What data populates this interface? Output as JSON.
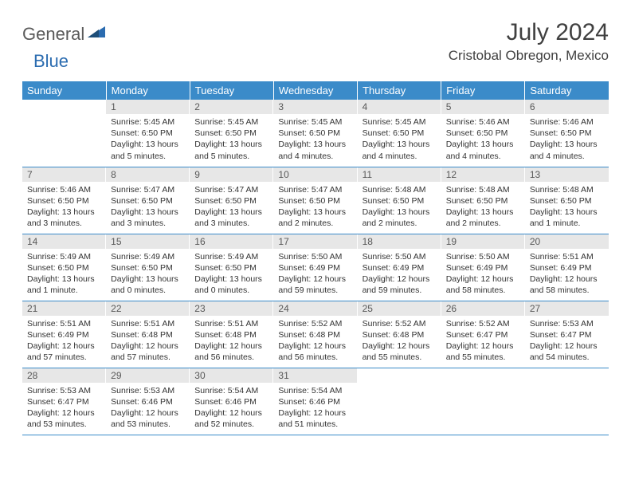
{
  "brand": {
    "part1": "General",
    "part2": "Blue"
  },
  "title": "July 2024",
  "location": "Cristobal Obregon, Mexico",
  "colors": {
    "header_bg": "#3b8bc9",
    "header_text": "#ffffff",
    "daynum_bg": "#e7e7e7",
    "daynum_text": "#595959",
    "border": "#3b8bc9",
    "brand_gray": "#5a5a5a",
    "brand_blue": "#2b6cb0"
  },
  "typography": {
    "title_fontsize": 30,
    "location_fontsize": 17,
    "dayhead_fontsize": 13,
    "cell_fontsize": 10.5
  },
  "day_headers": [
    "Sunday",
    "Monday",
    "Tuesday",
    "Wednesday",
    "Thursday",
    "Friday",
    "Saturday"
  ],
  "weeks": [
    [
      {
        "n": "",
        "sr": "",
        "ss": "",
        "dl": ""
      },
      {
        "n": "1",
        "sr": "Sunrise: 5:45 AM",
        "ss": "Sunset: 6:50 PM",
        "dl": "Daylight: 13 hours and 5 minutes."
      },
      {
        "n": "2",
        "sr": "Sunrise: 5:45 AM",
        "ss": "Sunset: 6:50 PM",
        "dl": "Daylight: 13 hours and 5 minutes."
      },
      {
        "n": "3",
        "sr": "Sunrise: 5:45 AM",
        "ss": "Sunset: 6:50 PM",
        "dl": "Daylight: 13 hours and 4 minutes."
      },
      {
        "n": "4",
        "sr": "Sunrise: 5:45 AM",
        "ss": "Sunset: 6:50 PM",
        "dl": "Daylight: 13 hours and 4 minutes."
      },
      {
        "n": "5",
        "sr": "Sunrise: 5:46 AM",
        "ss": "Sunset: 6:50 PM",
        "dl": "Daylight: 13 hours and 4 minutes."
      },
      {
        "n": "6",
        "sr": "Sunrise: 5:46 AM",
        "ss": "Sunset: 6:50 PM",
        "dl": "Daylight: 13 hours and 4 minutes."
      }
    ],
    [
      {
        "n": "7",
        "sr": "Sunrise: 5:46 AM",
        "ss": "Sunset: 6:50 PM",
        "dl": "Daylight: 13 hours and 3 minutes."
      },
      {
        "n": "8",
        "sr": "Sunrise: 5:47 AM",
        "ss": "Sunset: 6:50 PM",
        "dl": "Daylight: 13 hours and 3 minutes."
      },
      {
        "n": "9",
        "sr": "Sunrise: 5:47 AM",
        "ss": "Sunset: 6:50 PM",
        "dl": "Daylight: 13 hours and 3 minutes."
      },
      {
        "n": "10",
        "sr": "Sunrise: 5:47 AM",
        "ss": "Sunset: 6:50 PM",
        "dl": "Daylight: 13 hours and 2 minutes."
      },
      {
        "n": "11",
        "sr": "Sunrise: 5:48 AM",
        "ss": "Sunset: 6:50 PM",
        "dl": "Daylight: 13 hours and 2 minutes."
      },
      {
        "n": "12",
        "sr": "Sunrise: 5:48 AM",
        "ss": "Sunset: 6:50 PM",
        "dl": "Daylight: 13 hours and 2 minutes."
      },
      {
        "n": "13",
        "sr": "Sunrise: 5:48 AM",
        "ss": "Sunset: 6:50 PM",
        "dl": "Daylight: 13 hours and 1 minute."
      }
    ],
    [
      {
        "n": "14",
        "sr": "Sunrise: 5:49 AM",
        "ss": "Sunset: 6:50 PM",
        "dl": "Daylight: 13 hours and 1 minute."
      },
      {
        "n": "15",
        "sr": "Sunrise: 5:49 AM",
        "ss": "Sunset: 6:50 PM",
        "dl": "Daylight: 13 hours and 0 minutes."
      },
      {
        "n": "16",
        "sr": "Sunrise: 5:49 AM",
        "ss": "Sunset: 6:50 PM",
        "dl": "Daylight: 13 hours and 0 minutes."
      },
      {
        "n": "17",
        "sr": "Sunrise: 5:50 AM",
        "ss": "Sunset: 6:49 PM",
        "dl": "Daylight: 12 hours and 59 minutes."
      },
      {
        "n": "18",
        "sr": "Sunrise: 5:50 AM",
        "ss": "Sunset: 6:49 PM",
        "dl": "Daylight: 12 hours and 59 minutes."
      },
      {
        "n": "19",
        "sr": "Sunrise: 5:50 AM",
        "ss": "Sunset: 6:49 PM",
        "dl": "Daylight: 12 hours and 58 minutes."
      },
      {
        "n": "20",
        "sr": "Sunrise: 5:51 AM",
        "ss": "Sunset: 6:49 PM",
        "dl": "Daylight: 12 hours and 58 minutes."
      }
    ],
    [
      {
        "n": "21",
        "sr": "Sunrise: 5:51 AM",
        "ss": "Sunset: 6:49 PM",
        "dl": "Daylight: 12 hours and 57 minutes."
      },
      {
        "n": "22",
        "sr": "Sunrise: 5:51 AM",
        "ss": "Sunset: 6:48 PM",
        "dl": "Daylight: 12 hours and 57 minutes."
      },
      {
        "n": "23",
        "sr": "Sunrise: 5:51 AM",
        "ss": "Sunset: 6:48 PM",
        "dl": "Daylight: 12 hours and 56 minutes."
      },
      {
        "n": "24",
        "sr": "Sunrise: 5:52 AM",
        "ss": "Sunset: 6:48 PM",
        "dl": "Daylight: 12 hours and 56 minutes."
      },
      {
        "n": "25",
        "sr": "Sunrise: 5:52 AM",
        "ss": "Sunset: 6:48 PM",
        "dl": "Daylight: 12 hours and 55 minutes."
      },
      {
        "n": "26",
        "sr": "Sunrise: 5:52 AM",
        "ss": "Sunset: 6:47 PM",
        "dl": "Daylight: 12 hours and 55 minutes."
      },
      {
        "n": "27",
        "sr": "Sunrise: 5:53 AM",
        "ss": "Sunset: 6:47 PM",
        "dl": "Daylight: 12 hours and 54 minutes."
      }
    ],
    [
      {
        "n": "28",
        "sr": "Sunrise: 5:53 AM",
        "ss": "Sunset: 6:47 PM",
        "dl": "Daylight: 12 hours and 53 minutes."
      },
      {
        "n": "29",
        "sr": "Sunrise: 5:53 AM",
        "ss": "Sunset: 6:46 PM",
        "dl": "Daylight: 12 hours and 53 minutes."
      },
      {
        "n": "30",
        "sr": "Sunrise: 5:54 AM",
        "ss": "Sunset: 6:46 PM",
        "dl": "Daylight: 12 hours and 52 minutes."
      },
      {
        "n": "31",
        "sr": "Sunrise: 5:54 AM",
        "ss": "Sunset: 6:46 PM",
        "dl": "Daylight: 12 hours and 51 minutes."
      },
      {
        "n": "",
        "sr": "",
        "ss": "",
        "dl": ""
      },
      {
        "n": "",
        "sr": "",
        "ss": "",
        "dl": ""
      },
      {
        "n": "",
        "sr": "",
        "ss": "",
        "dl": ""
      }
    ]
  ]
}
